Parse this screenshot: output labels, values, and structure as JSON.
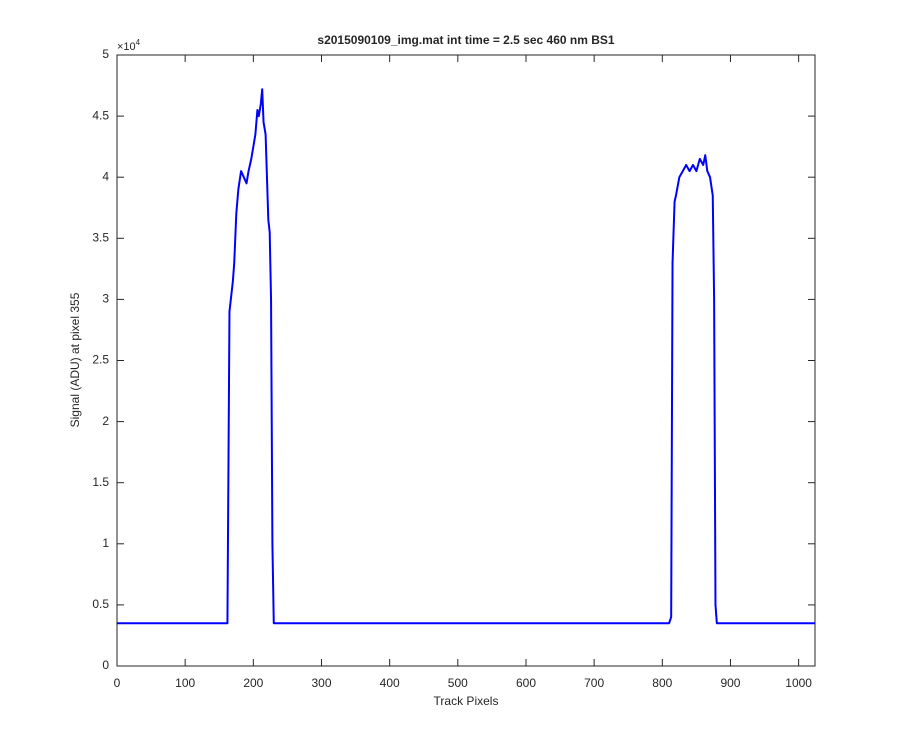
{
  "chart_data": {
    "type": "line",
    "title": "s2015090109_img.mat int time = 2.5 sec  460 nm BS1",
    "xlabel": "Track Pixels",
    "ylabel": "Signal (ADU) at pixel 355",
    "y_multiplier": {
      "base": "×10",
      "exponent": "4"
    },
    "xlim": [
      0,
      1024
    ],
    "ylim": [
      0,
      50000
    ],
    "xticks": [
      0,
      100,
      200,
      300,
      400,
      500,
      600,
      700,
      800,
      900,
      1000
    ],
    "yticks": [
      0,
      {
        "value": 5000,
        "label": "0.5"
      },
      {
        "value": 10000,
        "label": "1"
      },
      {
        "value": 15000,
        "label": "1.5"
      },
      {
        "value": 20000,
        "label": "2"
      },
      {
        "value": 25000,
        "label": "2.5"
      },
      {
        "value": 30000,
        "label": "3"
      },
      {
        "value": 35000,
        "label": "3.5"
      },
      {
        "value": 40000,
        "label": "4"
      },
      {
        "value": 45000,
        "label": "4.5"
      },
      {
        "value": 50000,
        "label": "5"
      }
    ],
    "x": [
      0,
      100,
      162,
      165,
      170,
      172,
      175,
      178,
      182,
      186,
      190,
      193,
      197,
      200,
      203,
      206,
      208,
      211,
      213,
      215,
      218,
      220,
      222,
      224,
      226,
      228,
      230,
      400,
      600,
      810,
      813,
      815,
      818,
      820,
      825,
      830,
      835,
      840,
      845,
      850,
      855,
      860,
      863,
      866,
      870,
      874,
      876,
      878,
      880,
      1024
    ],
    "series": [
      {
        "color": "#0000ff",
        "values": [
          3500,
          3500,
          3500,
          29000,
          31500,
          33000,
          37000,
          39000,
          40500,
          40000,
          39500,
          40500,
          41500,
          42500,
          43500,
          45500,
          45000,
          46000,
          47200,
          44500,
          43500,
          40000,
          36500,
          35500,
          30000,
          10000,
          3500,
          3500,
          3500,
          3500,
          4000,
          33000,
          38000,
          38500,
          40000,
          40500,
          41000,
          40500,
          41000,
          40500,
          41500,
          41000,
          41800,
          40500,
          40000,
          38500,
          30000,
          5000,
          3500,
          3500
        ]
      }
    ]
  }
}
